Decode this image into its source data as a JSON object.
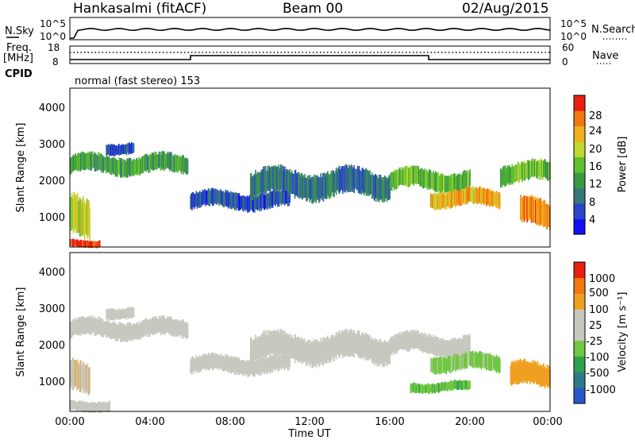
{
  "header": {
    "station": "Hankasalmi (fitACF)",
    "beam": "Beam 00",
    "date": "02/Aug/2015"
  },
  "strips": {
    "nsky_label": "N.Sky",
    "nsky_ticks": [
      "10^5",
      "10^0"
    ],
    "nsearch_label": "N.Search",
    "nsearch_ticks": [
      "10^5",
      "10^0"
    ],
    "freq_label_1": "Freq.",
    "freq_label_2": "[MHz]",
    "freq_ticks": [
      "18",
      "8"
    ],
    "nave_label": "Nave",
    "nave_ticks": [
      "60",
      "0"
    ],
    "cpid_label": "CPID",
    "cpid_text": "normal (fast stereo) 153"
  },
  "axes": {
    "ylabel": "Slant Range [km]",
    "xlabel": "Time UT",
    "y_ticks": [
      "4000",
      "3000",
      "2000",
      "1000"
    ],
    "x_ticks": [
      "00:00",
      "04:00",
      "08:00",
      "12:00",
      "16:00",
      "20:00",
      "00:00"
    ]
  },
  "colorbars": {
    "power_label": "Power [dB]",
    "power_ticks": [
      "28",
      "24",
      "20",
      "16",
      "12",
      "8",
      "4"
    ],
    "power_colors": [
      "#1010f0",
      "#2848c8",
      "#387878",
      "#3a9a40",
      "#60c030",
      "#c0d830",
      "#f0b020",
      "#f07810",
      "#e82010"
    ],
    "velocity_label": "Velocity [m s⁻¹]",
    "velocity_ticks": [
      "1000",
      "500",
      "100",
      "25",
      "-25",
      "-100",
      "-500",
      "-1000"
    ],
    "velocity_colors": [
      "#2858c8",
      "#2f7a88",
      "#30a050",
      "#70c840",
      "#c8c8c0",
      "#c8c8c0",
      "#f0a020",
      "#f07810",
      "#e82010"
    ]
  },
  "chart_data": {
    "type": "heatmap",
    "x_range": [
      "00:00",
      "24:00"
    ],
    "ylim": [
      180,
      4500
    ],
    "panels": [
      {
        "name": "Power [dB]",
        "zlim": [
          0,
          30
        ],
        "regions": [
          {
            "t0": 0.0,
            "t1": 5.9,
            "r0": 2150,
            "r1": 2700,
            "value": 12
          },
          {
            "t0": 1.8,
            "t1": 3.2,
            "r0": 2700,
            "r1": 3050,
            "value": 6
          },
          {
            "t0": 6.0,
            "t1": 11.0,
            "r0": 1200,
            "r1": 1700,
            "value": 6
          },
          {
            "t0": 9.0,
            "t1": 16.0,
            "r0": 1500,
            "r1": 2300,
            "value": 8
          },
          {
            "t0": 16.0,
            "t1": 20.0,
            "r0": 1700,
            "r1": 2300,
            "value": 14
          },
          {
            "t0": 18.0,
            "t1": 21.5,
            "r0": 1250,
            "r1": 1750,
            "value": 22
          },
          {
            "t0": 21.5,
            "t1": 24.0,
            "r0": 1900,
            "r1": 2500,
            "value": 14
          },
          {
            "t0": 22.5,
            "t1": 24.0,
            "r0": 700,
            "r1": 1500,
            "value": 24
          },
          {
            "t0": 0.0,
            "t1": 1.0,
            "r0": 300,
            "r1": 1500,
            "value": 18
          },
          {
            "t0": 0.0,
            "t1": 1.5,
            "r0": 180,
            "r1": 400,
            "value": 28
          }
        ]
      },
      {
        "name": "Velocity [m s-1]",
        "zlim": [
          -1000,
          1000
        ],
        "regions": [
          {
            "t0": 0.0,
            "t1": 5.9,
            "r0": 2150,
            "r1": 2700,
            "value": 0
          },
          {
            "t0": 1.8,
            "t1": 3.2,
            "r0": 2700,
            "r1": 3050,
            "value": 0
          },
          {
            "t0": 6.0,
            "t1": 11.0,
            "r0": 1200,
            "r1": 1700,
            "value": 0
          },
          {
            "t0": 9.0,
            "t1": 16.0,
            "r0": 1500,
            "r1": 2300,
            "value": 0
          },
          {
            "t0": 16.0,
            "t1": 20.0,
            "r0": 1700,
            "r1": 2300,
            "value": 0
          },
          {
            "t0": 18.0,
            "t1": 21.5,
            "r0": 1250,
            "r1": 1750,
            "value": -150
          },
          {
            "t0": 17.0,
            "t1": 20.0,
            "r0": 700,
            "r1": 1000,
            "value": -300
          },
          {
            "t0": 22.0,
            "t1": 24.0,
            "r0": 800,
            "r1": 1500,
            "value": 400
          },
          {
            "t0": 0.0,
            "t1": 1.0,
            "r0": 600,
            "r1": 1500,
            "value": 300
          },
          {
            "t0": 0.0,
            "t1": 2.0,
            "r0": 180,
            "r1": 500,
            "value": 100
          }
        ]
      }
    ],
    "frequency_mhz": 11,
    "nave": 30
  }
}
